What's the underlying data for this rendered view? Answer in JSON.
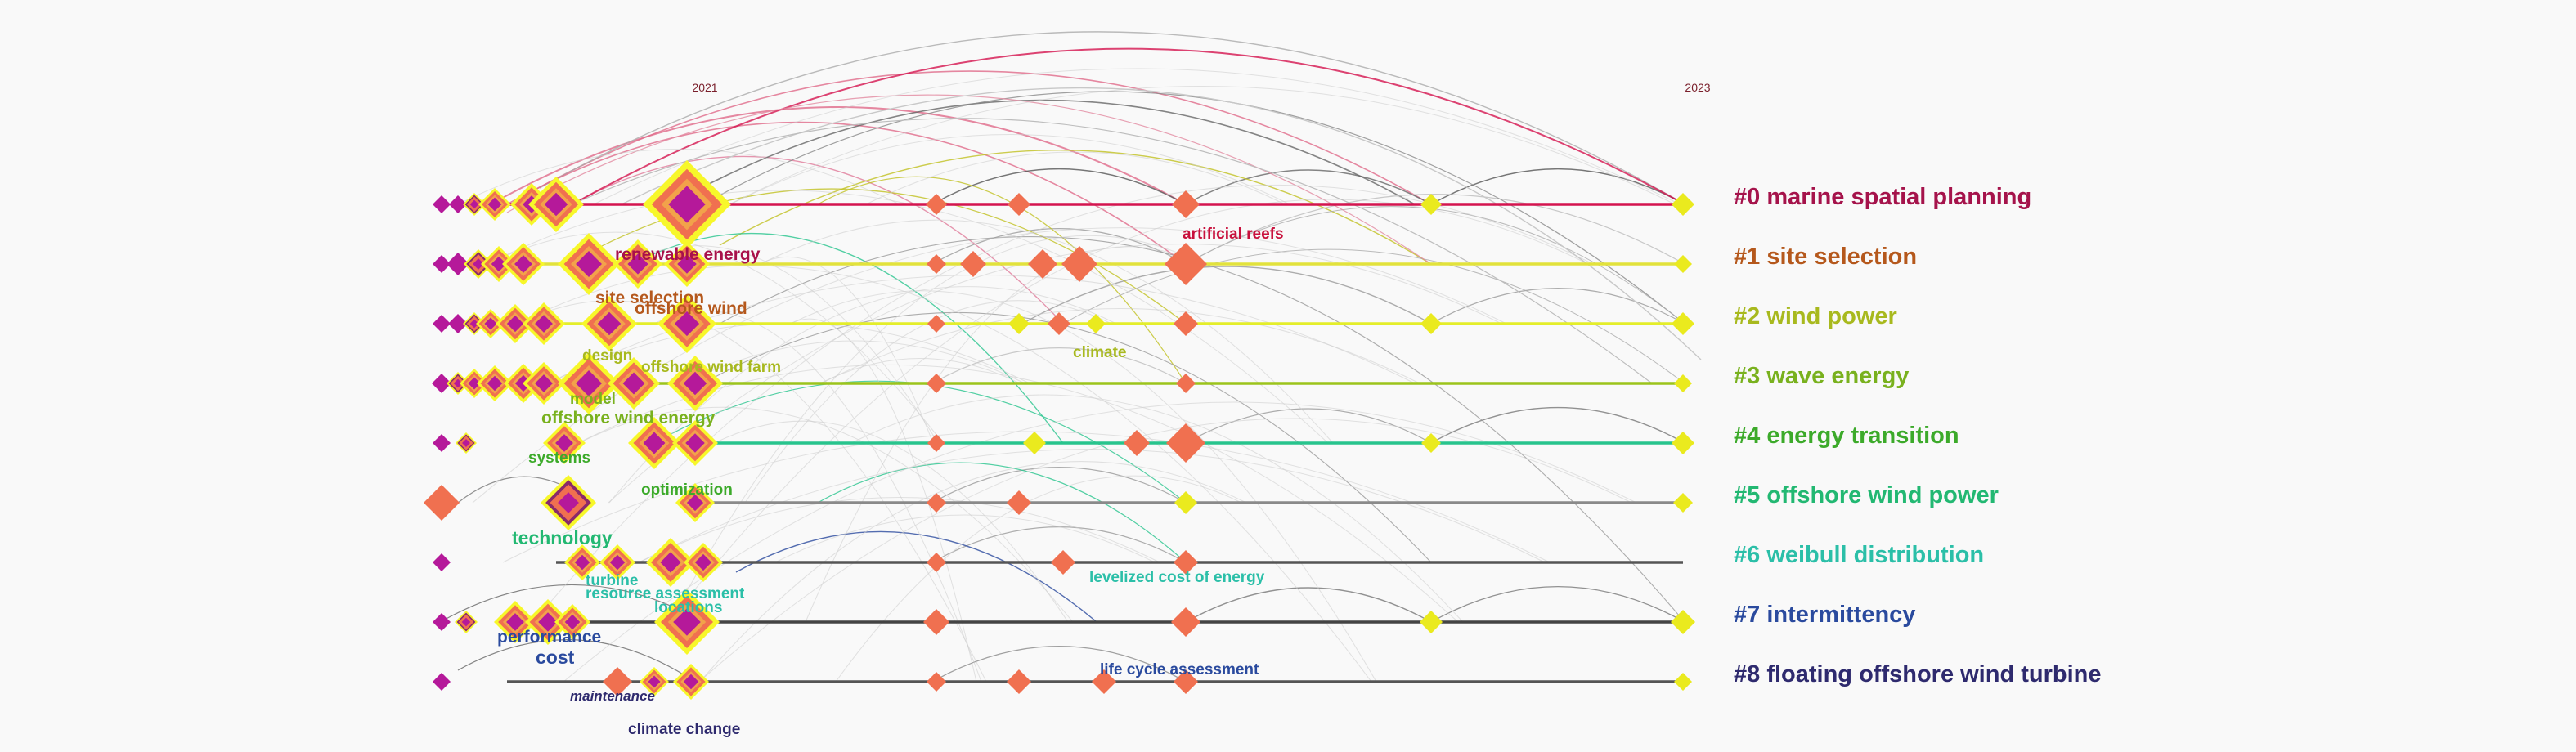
{
  "years": {
    "start": "2021",
    "end": "2023"
  },
  "clusters": [
    {
      "id": "#0",
      "label": "#0 marine spatial planning",
      "color": "#a5134b",
      "line_color": "#d4144f"
    },
    {
      "id": "#1",
      "label": "#1 site selection",
      "color": "#b5581c",
      "line_color": "#e2e23c"
    },
    {
      "id": "#2",
      "label": "#2 wind power",
      "color": "#a8b91e",
      "line_color": "#e4ee2a"
    },
    {
      "id": "#3",
      "label": "#3 wave energy",
      "color": "#79b11e",
      "line_color": "#9cc41c"
    },
    {
      "id": "#4",
      "label": "#4 energy transition",
      "color": "#3caa2a",
      "line_color": "#28c48d"
    },
    {
      "id": "#5",
      "label": "#5 offshore wind power",
      "color": "#22b872",
      "line_color": "#8a8a8a"
    },
    {
      "id": "#6",
      "label": "#6 weibull distribution",
      "color": "#2bbfa8",
      "line_color": "#555555"
    },
    {
      "id": "#7",
      "label": "#7 intermittency",
      "color": "#2a4a9e",
      "line_color": "#444444"
    },
    {
      "id": "#8",
      "label": "#8 floating offshore wind turbine",
      "color": "#2e2a6e",
      "line_color": "#555555"
    }
  ],
  "keywords": [
    {
      "text": "artificial reefs",
      "color": "#c8103c",
      "row": 0
    },
    {
      "text": "renewable energy",
      "color": "#a8104a",
      "row": 1
    },
    {
      "text": "site selection",
      "color": "#b5581c",
      "row": 1
    },
    {
      "text": "offshore wind",
      "color": "#b5581c",
      "row": 1
    },
    {
      "text": "climate",
      "color": "#a8b91e",
      "row": 2
    },
    {
      "text": "design",
      "color": "#a8b91e",
      "row": 2
    },
    {
      "text": "offshore wind farm",
      "color": "#a8b91e",
      "row": 2
    },
    {
      "text": "model",
      "color": "#79b11e",
      "row": 3
    },
    {
      "text": "offshore wind energy",
      "color": "#79b11e",
      "row": 3
    },
    {
      "text": "systems",
      "color": "#3caa2a",
      "row": 4
    },
    {
      "text": "optimization",
      "color": "#3caa2a",
      "row": 4
    },
    {
      "text": "technology",
      "color": "#22b872",
      "row": 5
    },
    {
      "text": "turbine",
      "color": "#2bbfa8",
      "row": 6
    },
    {
      "text": "resource assessment",
      "color": "#2bbfa8",
      "row": 6
    },
    {
      "text": "levelized cost of energy",
      "color": "#2bbfa8",
      "row": 6
    },
    {
      "text": "locations",
      "color": "#2bbfa8",
      "row": 6
    },
    {
      "text": "performance",
      "color": "#2a4a9e",
      "row": 7
    },
    {
      "text": "cost",
      "color": "#2a4a9e",
      "row": 7
    },
    {
      "text": "life cycle assessment",
      "color": "#2a4a9e",
      "row": 8
    },
    {
      "text": "maintenance",
      "color": "#2e2a6e",
      "row": 8
    },
    {
      "text": "climate change",
      "color": "#2e2a6e",
      "row": 8
    }
  ],
  "palette": {
    "node_old": "#b5199a",
    "node_mid": "#f07050",
    "node_new": "#eaea1e",
    "ring_hot": "#f7f72a",
    "arc_grey": "#b0b0b0",
    "arc_pink": "#e87090"
  }
}
